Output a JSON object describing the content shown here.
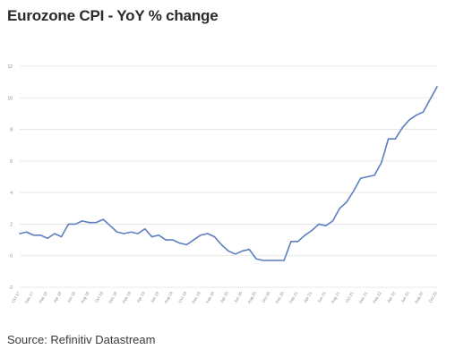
{
  "title": "Eurozone CPI - YoY % change",
  "source": "Source: Refinitiv Datastream",
  "chart_data": {
    "type": "line",
    "title": "Eurozone CPI - YoY % change",
    "xlabel": "",
    "ylabel": "",
    "ylim": [
      -2,
      12
    ],
    "yticks": [
      -2,
      0,
      2,
      4,
      6,
      8,
      10,
      12
    ],
    "grid": true,
    "legend": "none",
    "series_color": "#5b7fbf",
    "x": [
      "Oct 17",
      "Nov 17",
      "Dec 17",
      "Jan 18",
      "Feb 18",
      "Mar 18",
      "Apr 18",
      "May 18",
      "Jun 18",
      "Jul 18",
      "Aug 18",
      "Sep 18",
      "Oct 18",
      "Nov 18",
      "Dec 18",
      "Jan 19",
      "Feb 19",
      "Mar 19",
      "Apr 19",
      "May 19",
      "Jun 19",
      "Jul 19",
      "Aug 19",
      "Sep 19",
      "Oct 19",
      "Nov 19",
      "Dec 19",
      "Jan 20",
      "Feb 20",
      "Mar 20",
      "Apr 20",
      "May 20",
      "Jun 20",
      "Jul 20",
      "Aug 20",
      "Sep 20",
      "Oct 20",
      "Nov 20",
      "Dec 20",
      "Jan 21",
      "Feb 21",
      "Mar 21",
      "Apr 21",
      "May 21",
      "Jun 21",
      "Jul 21",
      "Aug 21",
      "Sep 21",
      "Oct 21",
      "Nov 21",
      "Dec 21",
      "Jan 22",
      "Feb 22",
      "Mar 22",
      "Apr 22",
      "May 22",
      "Jun 22",
      "Jul 22",
      "Aug 22",
      "Sep 22",
      "Oct 22"
    ],
    "tick_labels": [
      "Oct 17",
      "Dec 17",
      "Feb 18",
      "Apr 18",
      "Jun 18",
      "Aug 18",
      "Oct 18",
      "Dec 18",
      "Feb 19",
      "Apr 19",
      "Jun 19",
      "Aug 19",
      "Oct 19",
      "Dec 19",
      "Feb 20",
      "Apr 20",
      "Jun 20",
      "Aug 20",
      "Oct 20",
      "Dec 20",
      "Feb 21",
      "Apr 21",
      "Jun 21",
      "Aug 21",
      "Oct 21",
      "Dec 21",
      "Feb 22",
      "Apr 22",
      "Jun 22",
      "Aug 22",
      "Oct 22"
    ],
    "values": [
      1.4,
      1.5,
      1.3,
      1.3,
      1.1,
      1.4,
      1.2,
      2.0,
      2.0,
      2.2,
      2.1,
      2.1,
      2.3,
      1.9,
      1.5,
      1.4,
      1.5,
      1.4,
      1.7,
      1.2,
      1.3,
      1.0,
      1.0,
      0.8,
      0.7,
      1.0,
      1.3,
      1.4,
      1.2,
      0.7,
      0.3,
      0.1,
      0.3,
      0.4,
      -0.2,
      -0.3,
      -0.3,
      -0.3,
      -0.3,
      0.9,
      0.9,
      1.3,
      1.6,
      2.0,
      1.9,
      2.2,
      3.0,
      3.4,
      4.1,
      4.9,
      5.0,
      5.1,
      5.9,
      7.4,
      7.4,
      8.1,
      8.6,
      8.9,
      9.1,
      9.9,
      10.7
    ]
  }
}
